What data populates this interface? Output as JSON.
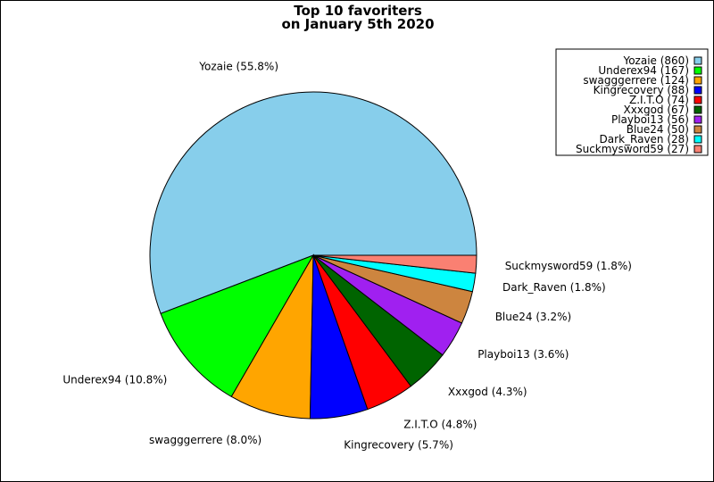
{
  "chart_data": {
    "type": "pie",
    "title": "Top 10 favoriters",
    "subtitle": "on January 5th 2020",
    "legend_position": "top-right",
    "slices": [
      {
        "name": "Yozaie",
        "value": 860,
        "percent_label": "Yozaie (55.8%)",
        "legend_label": "Yozaie (860)",
        "color": "#87ceeb"
      },
      {
        "name": "Underex94",
        "value": 167,
        "percent_label": "Underex94 (10.8%)",
        "legend_label": "Underex94 (167)",
        "color": "#00ff00"
      },
      {
        "name": "swagggerrere",
        "value": 124,
        "percent_label": "swagggerrere (8.0%)",
        "legend_label": "swagggerrere (124)",
        "color": "#ffa500"
      },
      {
        "name": "Kingrecovery",
        "value": 88,
        "percent_label": "Kingrecovery (5.7%)",
        "legend_label": "Kingrecovery (88)",
        "color": "#0000ff"
      },
      {
        "name": "Z.I.T.O",
        "value": 74,
        "percent_label": "Z.I.T.O (4.8%)",
        "legend_label": "Z.I.T.O (74)",
        "color": "#ff0000"
      },
      {
        "name": "Xxxgod",
        "value": 67,
        "percent_label": "Xxxgod (4.3%)",
        "legend_label": "Xxxgod (67)",
        "color": "#006400"
      },
      {
        "name": "Playboi13",
        "value": 56,
        "percent_label": "Playboi13 (3.6%)",
        "legend_label": "Playboi13 (56)",
        "color": "#a020f0"
      },
      {
        "name": "Blue24",
        "value": 50,
        "percent_label": "Blue24 (3.2%)",
        "legend_label": "Blue24 (50)",
        "color": "#cd853f"
      },
      {
        "name": "Dark_Raven",
        "value": 28,
        "percent_label": "Dark_Raven (1.8%)",
        "legend_label": "Dark_Raven (28)",
        "color": "#00ffff"
      },
      {
        "name": "Suckmysword59",
        "value": 27,
        "percent_label": "Suckmysword59 (1.8%)",
        "legend_label": "Suckmysword59 (27)",
        "color": "#fa8072"
      }
    ]
  }
}
